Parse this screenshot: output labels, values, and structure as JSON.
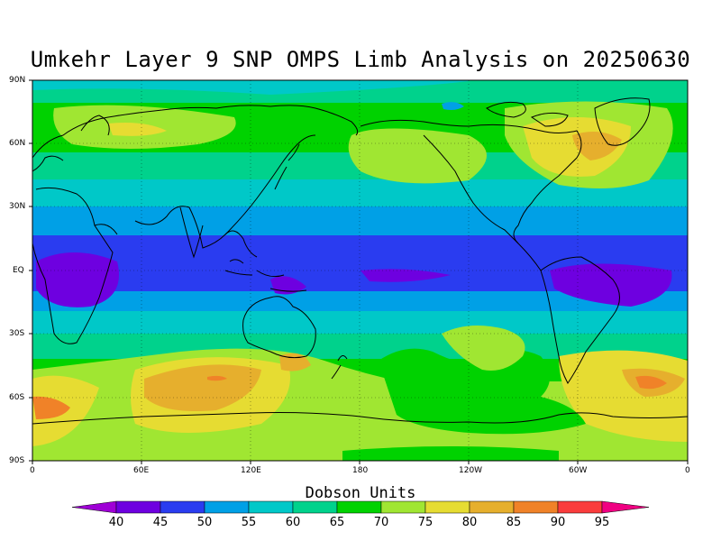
{
  "title": "Umkehr Layer 9 SNP OMPS Limb Analysis on 20250630",
  "lat_labels": [
    "90N",
    "60N",
    "30N",
    "EQ",
    "30S",
    "60S",
    "90S"
  ],
  "lon_labels": [
    "0",
    "60E",
    "120E",
    "180",
    "120W",
    "60W",
    "0"
  ],
  "colorbar": {
    "title": "Dobson Units",
    "levels": [
      "40",
      "45",
      "50",
      "55",
      "60",
      "65",
      "70",
      "75",
      "80",
      "85",
      "90",
      "95"
    ],
    "colors": [
      "#9f00d6",
      "#6e00e0",
      "#2a3cf0",
      "#00a0e6",
      "#00c8c8",
      "#00d28c",
      "#00d200",
      "#a0e632",
      "#e6dc32",
      "#e6af2d",
      "#f08228",
      "#fa3c3c",
      "#f00082"
    ]
  }
}
